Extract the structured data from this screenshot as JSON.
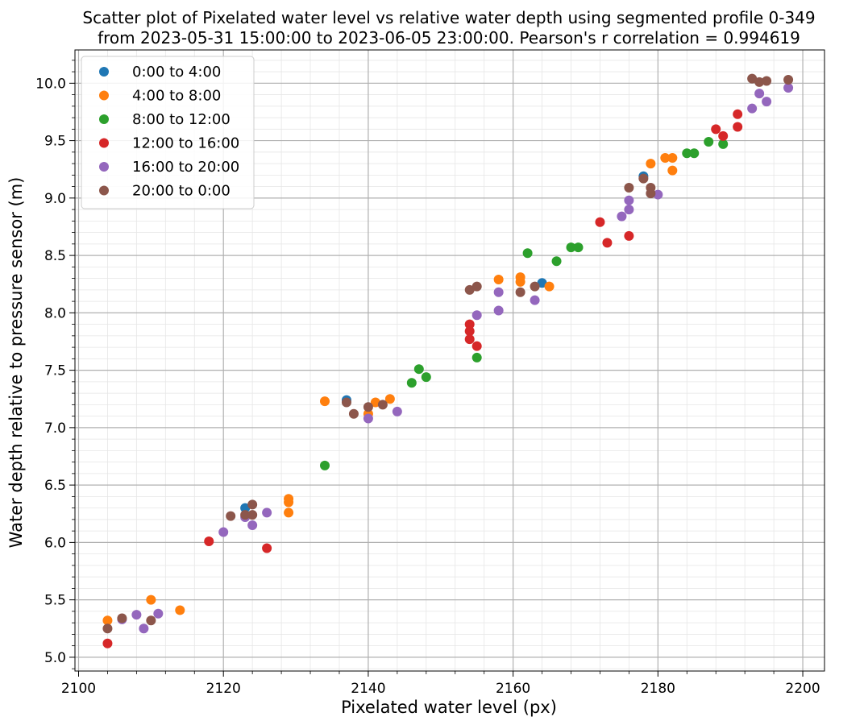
{
  "chart_data": {
    "type": "scatter",
    "title": [
      "Scatter plot of Pixelated water level vs relative water depth using segmented profile 0-349",
      "from 2023-05-31 15:00:00 to 2023-06-05 23:00:00. Pearson's r correlation = 0.994619"
    ],
    "xlabel": "Pixelated water level (px)",
    "ylabel": "Water depth relative to pressure sensor (m)",
    "xlim": [
      2099.5,
      2203.0
    ],
    "ylim": [
      4.88,
      10.29
    ],
    "xticks": [
      2100,
      2120,
      2140,
      2160,
      2180,
      2200
    ],
    "yticks": [
      5.0,
      5.5,
      6.0,
      6.5,
      7.0,
      7.5,
      8.0,
      8.5,
      9.0,
      9.5,
      10.0
    ],
    "xtick_labels": [
      "2100",
      "2120",
      "2140",
      "2160",
      "2180",
      "2200"
    ],
    "ytick_labels": [
      "5.0",
      "5.5",
      "6.0",
      "6.5",
      "7.0",
      "7.5",
      "8.0",
      "8.5",
      "9.0",
      "9.5",
      "10.0"
    ],
    "grid": true,
    "minor_grid": true,
    "legend_position": "top-left",
    "series": [
      {
        "name": "0:00 to 4:00",
        "color": "#1f77b4",
        "points": [
          [
            2123,
            6.3
          ],
          [
            2137,
            7.24
          ],
          [
            2164,
            8.26
          ],
          [
            2178,
            9.19
          ]
        ]
      },
      {
        "name": "4:00 to 8:00",
        "color": "#ff7f0e",
        "points": [
          [
            2104,
            5.32
          ],
          [
            2110,
            5.5
          ],
          [
            2114,
            5.41
          ],
          [
            2129,
            6.38
          ],
          [
            2129,
            6.35
          ],
          [
            2129,
            6.26
          ],
          [
            2134,
            7.23
          ],
          [
            2140,
            7.12
          ],
          [
            2141,
            7.22
          ],
          [
            2143,
            7.25
          ],
          [
            2158,
            8.29
          ],
          [
            2161,
            8.31
          ],
          [
            2161,
            8.27
          ],
          [
            2165,
            8.23
          ],
          [
            2179,
            9.3
          ],
          [
            2181,
            9.35
          ],
          [
            2182,
            9.35
          ],
          [
            2182,
            9.24
          ]
        ]
      },
      {
        "name": "8:00 to 12:00",
        "color": "#2ca02c",
        "points": [
          [
            2134,
            6.67
          ],
          [
            2146,
            7.39
          ],
          [
            2147,
            7.51
          ],
          [
            2148,
            7.44
          ],
          [
            2155,
            7.61
          ],
          [
            2162,
            8.52
          ],
          [
            2166,
            8.45
          ],
          [
            2168,
            8.57
          ],
          [
            2169,
            8.57
          ],
          [
            2184,
            9.39
          ],
          [
            2185,
            9.39
          ],
          [
            2187,
            9.49
          ],
          [
            2189,
            9.47
          ]
        ]
      },
      {
        "name": "12:00 to 16:00",
        "color": "#d62728",
        "points": [
          [
            2104,
            5.12
          ],
          [
            2118,
            6.01
          ],
          [
            2126,
            5.95
          ],
          [
            2154,
            7.9
          ],
          [
            2154,
            7.84
          ],
          [
            2154,
            7.77
          ],
          [
            2155,
            7.71
          ],
          [
            2172,
            8.79
          ],
          [
            2173,
            8.61
          ],
          [
            2176,
            8.67
          ],
          [
            2188,
            9.6
          ],
          [
            2189,
            9.54
          ],
          [
            2191,
            9.73
          ],
          [
            2191,
            9.62
          ]
        ]
      },
      {
        "name": "16:00 to 20:00",
        "color": "#9467bd",
        "points": [
          [
            2106,
            5.33
          ],
          [
            2108,
            5.37
          ],
          [
            2109,
            5.25
          ],
          [
            2111,
            5.38
          ],
          [
            2120,
            6.09
          ],
          [
            2123,
            6.22
          ],
          [
            2124,
            6.15
          ],
          [
            2126,
            6.26
          ],
          [
            2140,
            7.08
          ],
          [
            2144,
            7.14
          ],
          [
            2155,
            7.98
          ],
          [
            2158,
            8.18
          ],
          [
            2158,
            8.02
          ],
          [
            2163,
            8.11
          ],
          [
            2175,
            8.84
          ],
          [
            2176,
            8.98
          ],
          [
            2176,
            8.9
          ],
          [
            2180,
            9.03
          ],
          [
            2193,
            9.78
          ],
          [
            2194,
            9.91
          ],
          [
            2195,
            9.84
          ],
          [
            2198,
            9.96
          ]
        ]
      },
      {
        "name": "20:00 to 0:00",
        "color": "#8c564b",
        "points": [
          [
            2104,
            5.25
          ],
          [
            2106,
            5.34
          ],
          [
            2110,
            5.32
          ],
          [
            2121,
            6.23
          ],
          [
            2123,
            6.24
          ],
          [
            2124,
            6.33
          ],
          [
            2124,
            6.24
          ],
          [
            2137,
            7.22
          ],
          [
            2138,
            7.12
          ],
          [
            2140,
            7.18
          ],
          [
            2142,
            7.2
          ],
          [
            2154,
            8.2
          ],
          [
            2155,
            8.23
          ],
          [
            2161,
            8.18
          ],
          [
            2163,
            8.23
          ],
          [
            2176,
            9.09
          ],
          [
            2178,
            9.17
          ],
          [
            2179,
            9.09
          ],
          [
            2179,
            9.04
          ],
          [
            2193,
            10.04
          ],
          [
            2194,
            10.01
          ],
          [
            2195,
            10.02
          ],
          [
            2198,
            10.03
          ]
        ]
      }
    ]
  }
}
